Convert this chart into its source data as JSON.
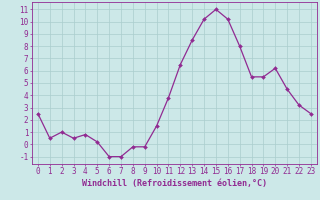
{
  "x": [
    0,
    1,
    2,
    3,
    4,
    5,
    6,
    7,
    8,
    9,
    10,
    11,
    12,
    13,
    14,
    15,
    16,
    17,
    18,
    19,
    20,
    21,
    22,
    23
  ],
  "y": [
    2.5,
    0.5,
    1.0,
    0.5,
    0.8,
    0.2,
    -1.0,
    -1.0,
    -0.2,
    -0.2,
    1.5,
    3.8,
    6.5,
    8.5,
    10.2,
    11.0,
    10.2,
    8.0,
    5.5,
    5.5,
    6.2,
    4.5,
    3.2,
    2.5
  ],
  "xlabel": "Windchill (Refroidissement éolien,°C)",
  "yticks": [
    -1,
    0,
    1,
    2,
    3,
    4,
    5,
    6,
    7,
    8,
    9,
    10,
    11
  ],
  "ylim": [
    -1.6,
    11.6
  ],
  "xlim": [
    -0.5,
    23.5
  ],
  "line_color": "#912b92",
  "marker_color": "#912b92",
  "bg_color": "#cce8e8",
  "grid_color": "#aacece",
  "axis_color": "#912b92",
  "xlabel_fontsize": 6,
  "tick_fontsize": 5.5
}
